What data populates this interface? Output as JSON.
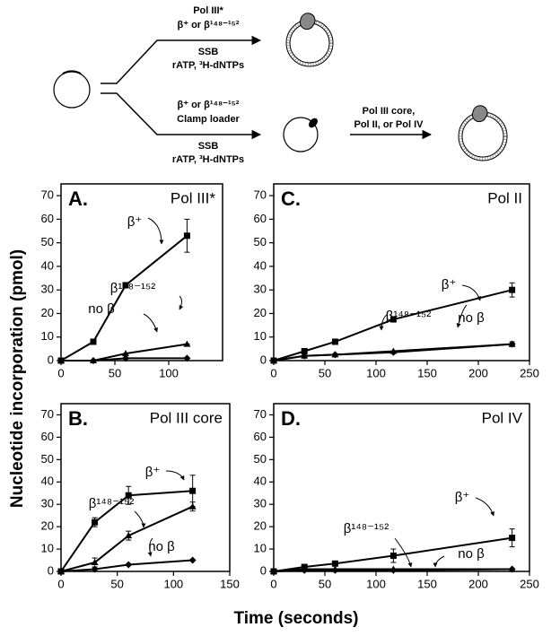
{
  "diagram": {
    "upper": {
      "above": [
        "Pol III*",
        "β⁺ or β¹⁴⁸⁻¹⁵²"
      ],
      "below": [
        "SSB",
        "rATP, ³H-dNTPs"
      ]
    },
    "lower": {
      "above": [
        "β⁺ or β¹⁴⁸⁻¹⁵²",
        "Clamp loader"
      ],
      "below": [
        "SSB",
        "rATP, ³H-dNTPs"
      ]
    },
    "step": {
      "above": [
        "Pol III core,",
        "Pol II, or Pol IV"
      ]
    }
  },
  "figure": {
    "ylabel": "Nucleotide incorporation (pmol)",
    "xlabel": "Time (seconds)"
  },
  "chart_data": [
    {
      "type": "line",
      "label": "A.",
      "title": "Pol III*",
      "x": [
        0,
        30,
        60,
        117
      ],
      "xlim": [
        0,
        150
      ],
      "xticks": [
        0,
        50,
        100
      ],
      "ylim": [
        0,
        75
      ],
      "yticks": [
        0,
        10,
        20,
        30,
        40,
        50,
        60,
        70
      ],
      "series": [
        {
          "name": "β⁺",
          "color": "#000000",
          "marker": "square",
          "values": [
            0,
            8,
            32,
            53
          ],
          "errors": [
            0,
            1,
            1,
            7
          ]
        },
        {
          "name": "β¹⁴⁸⁻¹⁵²",
          "color": "#000000",
          "marker": "triangle",
          "values": [
            0,
            0,
            3,
            7
          ],
          "errors": [
            0,
            0,
            0,
            0
          ]
        },
        {
          "name": "no β",
          "color": "#000000",
          "marker": "diamond",
          "values": [
            0,
            0,
            1,
            1
          ],
          "errors": [
            0,
            0,
            0,
            0
          ]
        }
      ]
    },
    {
      "type": "line",
      "label": "B.",
      "title": "Pol III core",
      "x": [
        0,
        30,
        60,
        117
      ],
      "xlim": [
        0,
        150
      ],
      "xticks": [
        0,
        50,
        100,
        150
      ],
      "ylim": [
        0,
        75
      ],
      "yticks": [
        0,
        10,
        20,
        30,
        40,
        50,
        60,
        70
      ],
      "series": [
        {
          "name": "β⁺",
          "color": "#000000",
          "marker": "square",
          "values": [
            0,
            22,
            34,
            36
          ],
          "errors": [
            0,
            2,
            4,
            7
          ]
        },
        {
          "name": "β¹⁴⁸⁻¹⁵²",
          "color": "#000000",
          "marker": "triangle",
          "values": [
            0,
            4,
            16,
            29
          ],
          "errors": [
            0,
            2,
            2,
            2
          ]
        },
        {
          "name": "no β",
          "color": "#000000",
          "marker": "diamond",
          "values": [
            0,
            1,
            3,
            5
          ],
          "errors": [
            0,
            0,
            0,
            0
          ]
        }
      ]
    },
    {
      "type": "line",
      "label": "C.",
      "title": "Pol II",
      "x": [
        0,
        30,
        60,
        117,
        233
      ],
      "xlim": [
        0,
        250
      ],
      "xticks": [
        0,
        50,
        100,
        150,
        200,
        250
      ],
      "ylim": [
        0,
        75
      ],
      "yticks": [
        0,
        10,
        20,
        30,
        40,
        50,
        60,
        70
      ],
      "series": [
        {
          "name": "β⁺",
          "color": "#000000",
          "marker": "square",
          "values": [
            0,
            4,
            8,
            17.5,
            30
          ],
          "errors": [
            0,
            1,
            1,
            1,
            3
          ]
        },
        {
          "name": "β¹⁴⁸⁻¹⁵²",
          "color": "#000000",
          "marker": "triangle",
          "values": [
            0,
            2,
            2.5,
            4,
            7
          ],
          "errors": [
            0,
            0,
            0,
            0,
            1
          ]
        },
        {
          "name": "no β",
          "color": "#000000",
          "marker": "diamond",
          "values": [
            0,
            2,
            2.5,
            3.5,
            7
          ],
          "errors": [
            0,
            0,
            0,
            0,
            0
          ]
        }
      ]
    },
    {
      "type": "line",
      "label": "D.",
      "title": "Pol IV",
      "x": [
        0,
        30,
        60,
        117,
        233
      ],
      "xlim": [
        0,
        250
      ],
      "xticks": [
        0,
        50,
        100,
        150,
        200,
        250
      ],
      "ylim": [
        0,
        75
      ],
      "yticks": [
        0,
        10,
        20,
        30,
        40,
        50,
        60,
        70
      ],
      "series": [
        {
          "name": "β⁺",
          "color": "#000000",
          "marker": "square",
          "values": [
            0,
            2,
            3.5,
            7,
            15
          ],
          "errors": [
            0,
            1,
            1,
            3,
            4
          ]
        },
        {
          "name": "β¹⁴⁸⁻¹⁵²",
          "color": "#000000",
          "marker": "triangle",
          "values": [
            0,
            1,
            1,
            1,
            1
          ],
          "errors": [
            0,
            0,
            0,
            0,
            0
          ]
        },
        {
          "name": "no β",
          "color": "#000000",
          "marker": "diamond",
          "values": [
            0,
            0.5,
            0.5,
            0.5,
            1
          ],
          "errors": [
            0,
            0,
            0,
            0,
            0
          ]
        }
      ]
    }
  ]
}
